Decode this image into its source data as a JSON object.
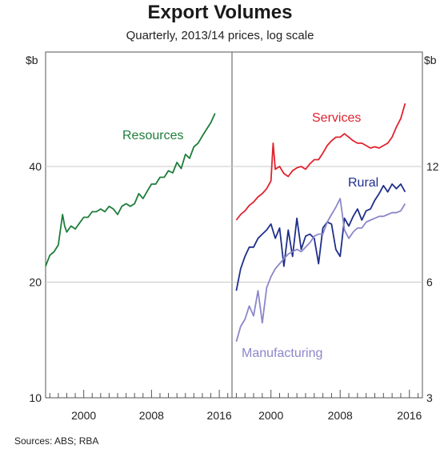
{
  "chart_data": {
    "title": "Export Volumes",
    "subtitle": "Quarterly, 2013/14 prices, log scale",
    "source": "Sources:  ABS; RBA",
    "panels": [
      {
        "type": "line",
        "y_unit": "$b",
        "y_scale": "log",
        "ylim": [
          10,
          60
        ],
        "yticks": [
          10,
          20,
          40
        ],
        "xlim": [
          1995.5,
          2017.5
        ],
        "xticks": [
          2000,
          2008,
          2016
        ],
        "grid": true,
        "series": [
          {
            "name": "Resources",
            "color": "#1e7d3a",
            "x": [
              1995.5,
              1996,
              1996.5,
              1997,
              1997.5,
              1997.75,
              1998,
              1998.5,
              1999,
              1999.5,
              2000,
              2000.5,
              2001,
              2001.5,
              2002,
              2002.5,
              2003,
              2003.5,
              2004,
              2004.5,
              2005,
              2005.5,
              2006,
              2006.5,
              2007,
              2007.5,
              2008,
              2008.5,
              2009,
              2009.5,
              2010,
              2010.5,
              2011,
              2011.5,
              2012,
              2012.5,
              2013,
              2013.5,
              2014,
              2014.5,
              2015,
              2015.5
            ],
            "values": [
              22,
              23.5,
              24,
              25,
              30,
              28,
              27,
              28,
              27.5,
              28.5,
              29.5,
              29.5,
              30.5,
              30.5,
              31,
              30.5,
              31.5,
              31,
              30,
              31.5,
              32,
              31.5,
              32,
              34,
              33,
              34.5,
              36,
              36,
              37.5,
              37.5,
              39,
              38.5,
              41,
              39.5,
              43,
              42,
              45,
              46,
              48,
              50,
              52,
              55
            ]
          }
        ]
      },
      {
        "type": "line",
        "y_unit": "$b",
        "y_scale": "log",
        "ylim": [
          3,
          18
        ],
        "yticks": [
          3,
          6,
          12
        ],
        "xlim": [
          1995.5,
          2017.5
        ],
        "xticks": [
          2000,
          2008,
          2016
        ],
        "grid": true,
        "series": [
          {
            "name": "Services",
            "color": "#e0222e",
            "x": [
              1996,
              1996.5,
              1997,
              1997.5,
              1998,
              1998.5,
              1999,
              1999.5,
              2000,
              2000.25,
              2000.5,
              2001,
              2001.5,
              2002,
              2002.5,
              2003,
              2003.5,
              2004,
              2004.5,
              2005,
              2005.5,
              2006,
              2006.5,
              2007,
              2007.5,
              2008,
              2008.5,
              2009,
              2009.5,
              2010,
              2010.5,
              2011,
              2011.5,
              2012,
              2012.5,
              2013,
              2013.5,
              2014,
              2014.5,
              2015,
              2015.5
            ],
            "values": [
              8.7,
              9,
              9.2,
              9.5,
              9.7,
              10,
              10.2,
              10.5,
              11,
              13.8,
              11.8,
              12,
              11.5,
              11.3,
              11.7,
              11.9,
              12,
              11.8,
              12.2,
              12.5,
              12.5,
              13,
              13.6,
              14,
              14.3,
              14.3,
              14.6,
              14.3,
              14,
              13.8,
              13.8,
              13.6,
              13.4,
              13.5,
              13.4,
              13.6,
              13.8,
              14.3,
              15.2,
              16,
              17.5
            ]
          },
          {
            "name": "Rural",
            "color": "#1f2f8a",
            "x": [
              1996,
              1996.5,
              1997,
              1997.5,
              1998,
              1998.5,
              1999,
              1999.5,
              2000,
              2000.5,
              2001,
              2001.5,
              2002,
              2002.5,
              2003,
              2003.5,
              2004,
              2004.5,
              2005,
              2005.5,
              2006,
              2006.5,
              2007,
              2007.5,
              2008,
              2008.5,
              2009,
              2009.5,
              2010,
              2010.5,
              2011,
              2011.5,
              2012,
              2012.5,
              2013,
              2013.5,
              2014,
              2014.5,
              2015,
              2015.5
            ],
            "values": [
              5.7,
              6.5,
              7,
              7.4,
              7.4,
              7.8,
              8,
              8.2,
              8.5,
              7.8,
              8.3,
              6.6,
              8.2,
              7,
              8.8,
              7.3,
              7.9,
              8,
              7.8,
              6.7,
              8.3,
              8.6,
              8.5,
              7.3,
              7,
              8.8,
              8.4,
              8.9,
              9.3,
              8.7,
              9.2,
              9.3,
              9.8,
              10.2,
              10.7,
              10.3,
              10.8,
              10.5,
              10.8,
              10.3
            ]
          },
          {
            "name": "Manufacturing",
            "color": "#8c87c8",
            "x": [
              1996,
              1996.5,
              1997,
              1997.5,
              1998,
              1998.5,
              1999,
              1999.5,
              2000,
              2000.5,
              2001,
              2001.5,
              2002,
              2002.5,
              2003,
              2003.5,
              2004,
              2004.5,
              2005,
              2005.5,
              2006,
              2006.5,
              2007,
              2007.5,
              2008,
              2008.5,
              2009,
              2009.5,
              2010,
              2010.5,
              2011,
              2011.5,
              2012,
              2012.5,
              2013,
              2013.5,
              2014,
              2014.5,
              2015,
              2015.5
            ],
            "values": [
              4.2,
              4.6,
              4.8,
              5.2,
              4.9,
              5.7,
              4.7,
              5.8,
              6.2,
              6.5,
              6.7,
              6.9,
              7.1,
              7.2,
              7.3,
              7.2,
              7.4,
              7.6,
              7.9,
              8,
              8,
              8.6,
              9,
              9.4,
              9.9,
              8.2,
              7.8,
              8.1,
              8.3,
              8.3,
              8.6,
              8.7,
              8.8,
              8.9,
              8.9,
              9,
              9.1,
              9.1,
              9.2,
              9.6
            ]
          }
        ]
      }
    ]
  }
}
